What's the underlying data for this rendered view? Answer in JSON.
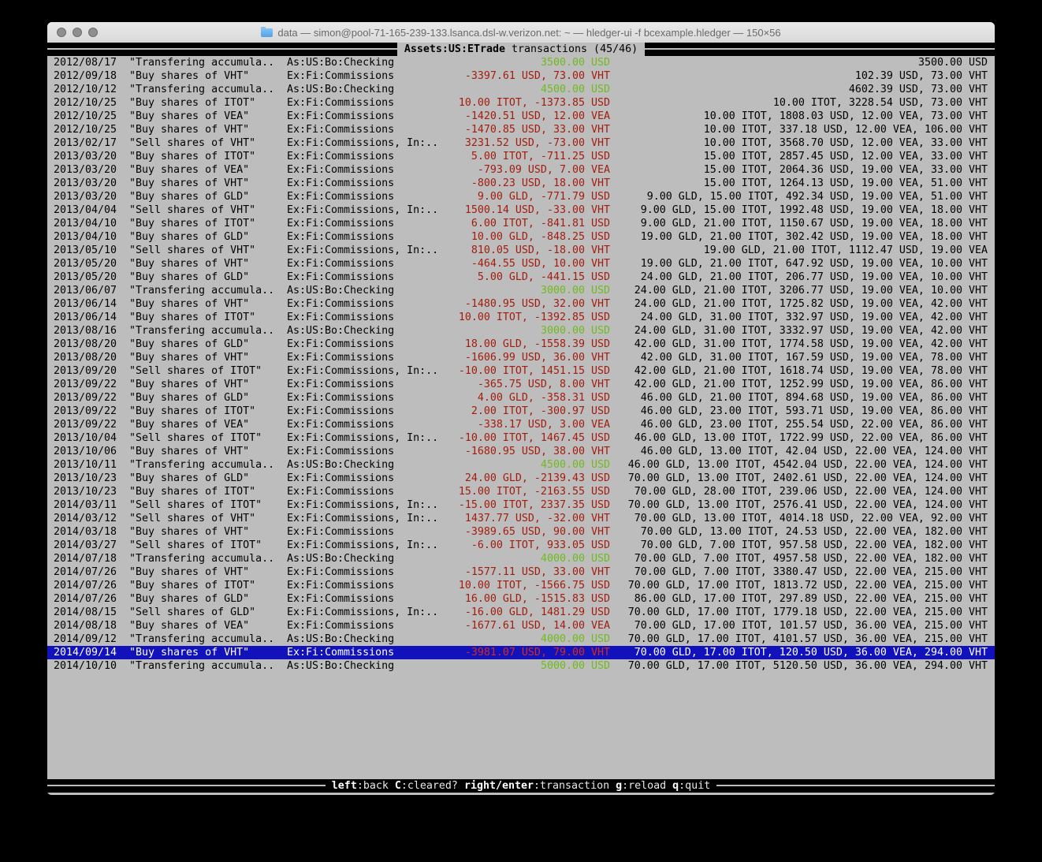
{
  "window": {
    "title": "data — simon@pool-71-165-239-133.lsanca.dsl-w.verizon.net: ~ — hledger-ui -f bcexample.hledger — 150×56"
  },
  "top_bar": {
    "title_bold": "Assets:US:ETrade",
    "title_rest": " transactions (45/46)"
  },
  "bottom_bar": {
    "hints": [
      {
        "key": "left",
        "desc": ":back"
      },
      {
        "key": "C",
        "desc": ":cleared?"
      },
      {
        "key": "right/enter",
        "desc": ":transaction"
      },
      {
        "key": "g",
        "desc": ":reload"
      },
      {
        "key": "q",
        "desc": ":quit"
      }
    ]
  },
  "colors": {
    "terminal-bg": "#bdbdbd",
    "terminal-fg": "#000000",
    "positive-green": "#70bb1c",
    "negative-red": "#a41c0e",
    "selection-bg": "#1212bd",
    "selection-fg": "#ffffff",
    "bar-bg": "#000000",
    "bar-fg": "#e8e8e8"
  },
  "register": {
    "rows": [
      {
        "date": "2012/08/17",
        "description": "\"Transfering accumula..",
        "accounts": "As:US:Bo:Checking",
        "change": "3500.00 USD",
        "change_color": "green",
        "balance": "3500.00 USD"
      },
      {
        "date": "2012/09/18",
        "description": "\"Buy shares of VHT\"",
        "accounts": "Ex:Fi:Commissions",
        "change": "-3397.61 USD, 73.00 VHT",
        "change_color": "red",
        "balance": "102.39 USD, 73.00 VHT"
      },
      {
        "date": "2012/10/12",
        "description": "\"Transfering accumula..",
        "accounts": "As:US:Bo:Checking",
        "change": "4500.00 USD",
        "change_color": "green",
        "balance": "4602.39 USD, 73.00 VHT"
      },
      {
        "date": "2012/10/25",
        "description": "\"Buy shares of ITOT\"",
        "accounts": "Ex:Fi:Commissions",
        "change": "10.00 ITOT, -1373.85 USD",
        "change_color": "red",
        "balance": "10.00 ITOT, 3228.54 USD, 73.00 VHT"
      },
      {
        "date": "2012/10/25",
        "description": "\"Buy shares of VEA\"",
        "accounts": "Ex:Fi:Commissions",
        "change": "-1420.51 USD, 12.00 VEA",
        "change_color": "red",
        "balance": "10.00 ITOT, 1808.03 USD, 12.00 VEA, 73.00 VHT"
      },
      {
        "date": "2012/10/25",
        "description": "\"Buy shares of VHT\"",
        "accounts": "Ex:Fi:Commissions",
        "change": "-1470.85 USD, 33.00 VHT",
        "change_color": "red",
        "balance": "10.00 ITOT, 337.18 USD, 12.00 VEA, 106.00 VHT"
      },
      {
        "date": "2013/02/17",
        "description": "\"Sell shares of VHT\"",
        "accounts": "Ex:Fi:Commissions, In:..",
        "change": "3231.52 USD, -73.00 VHT",
        "change_color": "red",
        "balance": "10.00 ITOT, 3568.70 USD, 12.00 VEA, 33.00 VHT"
      },
      {
        "date": "2013/03/20",
        "description": "\"Buy shares of ITOT\"",
        "accounts": "Ex:Fi:Commissions",
        "change": "5.00 ITOT, -711.25 USD",
        "change_color": "red",
        "balance": "15.00 ITOT, 2857.45 USD, 12.00 VEA, 33.00 VHT"
      },
      {
        "date": "2013/03/20",
        "description": "\"Buy shares of VEA\"",
        "accounts": "Ex:Fi:Commissions",
        "change": "-793.09 USD, 7.00 VEA",
        "change_color": "red",
        "balance": "15.00 ITOT, 2064.36 USD, 19.00 VEA, 33.00 VHT"
      },
      {
        "date": "2013/03/20",
        "description": "\"Buy shares of VHT\"",
        "accounts": "Ex:Fi:Commissions",
        "change": "-800.23 USD, 18.00 VHT",
        "change_color": "red",
        "balance": "15.00 ITOT, 1264.13 USD, 19.00 VEA, 51.00 VHT"
      },
      {
        "date": "2013/03/20",
        "description": "\"Buy shares of GLD\"",
        "accounts": "Ex:Fi:Commissions",
        "change": "9.00 GLD, -771.79 USD",
        "change_color": "red",
        "balance": "9.00 GLD, 15.00 ITOT, 492.34 USD, 19.00 VEA, 51.00 VHT"
      },
      {
        "date": "2013/04/04",
        "description": "\"Sell shares of VHT\"",
        "accounts": "Ex:Fi:Commissions, In:..",
        "change": "1500.14 USD, -33.00 VHT",
        "change_color": "red",
        "balance": "9.00 GLD, 15.00 ITOT, 1992.48 USD, 19.00 VEA, 18.00 VHT"
      },
      {
        "date": "2013/04/10",
        "description": "\"Buy shares of ITOT\"",
        "accounts": "Ex:Fi:Commissions",
        "change": "6.00 ITOT, -841.81 USD",
        "change_color": "red",
        "balance": "9.00 GLD, 21.00 ITOT, 1150.67 USD, 19.00 VEA, 18.00 VHT"
      },
      {
        "date": "2013/04/10",
        "description": "\"Buy shares of GLD\"",
        "accounts": "Ex:Fi:Commissions",
        "change": "10.00 GLD, -848.25 USD",
        "change_color": "red",
        "balance": "19.00 GLD, 21.00 ITOT, 302.42 USD, 19.00 VEA, 18.00 VHT"
      },
      {
        "date": "2013/05/10",
        "description": "\"Sell shares of VHT\"",
        "accounts": "Ex:Fi:Commissions, In:..",
        "change": "810.05 USD, -18.00 VHT",
        "change_color": "red",
        "balance": "19.00 GLD, 21.00 ITOT, 1112.47 USD, 19.00 VEA"
      },
      {
        "date": "2013/05/20",
        "description": "\"Buy shares of VHT\"",
        "accounts": "Ex:Fi:Commissions",
        "change": "-464.55 USD, 10.00 VHT",
        "change_color": "red",
        "balance": "19.00 GLD, 21.00 ITOT, 647.92 USD, 19.00 VEA, 10.00 VHT"
      },
      {
        "date": "2013/05/20",
        "description": "\"Buy shares of GLD\"",
        "accounts": "Ex:Fi:Commissions",
        "change": "5.00 GLD, -441.15 USD",
        "change_color": "red",
        "balance": "24.00 GLD, 21.00 ITOT, 206.77 USD, 19.00 VEA, 10.00 VHT"
      },
      {
        "date": "2013/06/07",
        "description": "\"Transfering accumula..",
        "accounts": "As:US:Bo:Checking",
        "change": "3000.00 USD",
        "change_color": "green",
        "balance": "24.00 GLD, 21.00 ITOT, 3206.77 USD, 19.00 VEA, 10.00 VHT"
      },
      {
        "date": "2013/06/14",
        "description": "\"Buy shares of VHT\"",
        "accounts": "Ex:Fi:Commissions",
        "change": "-1480.95 USD, 32.00 VHT",
        "change_color": "red",
        "balance": "24.00 GLD, 21.00 ITOT, 1725.82 USD, 19.00 VEA, 42.00 VHT"
      },
      {
        "date": "2013/06/14",
        "description": "\"Buy shares of ITOT\"",
        "accounts": "Ex:Fi:Commissions",
        "change": "10.00 ITOT, -1392.85 USD",
        "change_color": "red",
        "balance": "24.00 GLD, 31.00 ITOT, 332.97 USD, 19.00 VEA, 42.00 VHT"
      },
      {
        "date": "2013/08/16",
        "description": "\"Transfering accumula..",
        "accounts": "As:US:Bo:Checking",
        "change": "3000.00 USD",
        "change_color": "green",
        "balance": "24.00 GLD, 31.00 ITOT, 3332.97 USD, 19.00 VEA, 42.00 VHT"
      },
      {
        "date": "2013/08/20",
        "description": "\"Buy shares of GLD\"",
        "accounts": "Ex:Fi:Commissions",
        "change": "18.00 GLD, -1558.39 USD",
        "change_color": "red",
        "balance": "42.00 GLD, 31.00 ITOT, 1774.58 USD, 19.00 VEA, 42.00 VHT"
      },
      {
        "date": "2013/08/20",
        "description": "\"Buy shares of VHT\"",
        "accounts": "Ex:Fi:Commissions",
        "change": "-1606.99 USD, 36.00 VHT",
        "change_color": "red",
        "balance": "42.00 GLD, 31.00 ITOT, 167.59 USD, 19.00 VEA, 78.00 VHT"
      },
      {
        "date": "2013/09/20",
        "description": "\"Sell shares of ITOT\"",
        "accounts": "Ex:Fi:Commissions, In:..",
        "change": "-10.00 ITOT, 1451.15 USD",
        "change_color": "red",
        "balance": "42.00 GLD, 21.00 ITOT, 1618.74 USD, 19.00 VEA, 78.00 VHT"
      },
      {
        "date": "2013/09/22",
        "description": "\"Buy shares of VHT\"",
        "accounts": "Ex:Fi:Commissions",
        "change": "-365.75 USD, 8.00 VHT",
        "change_color": "red",
        "balance": "42.00 GLD, 21.00 ITOT, 1252.99 USD, 19.00 VEA, 86.00 VHT"
      },
      {
        "date": "2013/09/22",
        "description": "\"Buy shares of GLD\"",
        "accounts": "Ex:Fi:Commissions",
        "change": "4.00 GLD, -358.31 USD",
        "change_color": "red",
        "balance": "46.00 GLD, 21.00 ITOT, 894.68 USD, 19.00 VEA, 86.00 VHT"
      },
      {
        "date": "2013/09/22",
        "description": "\"Buy shares of ITOT\"",
        "accounts": "Ex:Fi:Commissions",
        "change": "2.00 ITOT, -300.97 USD",
        "change_color": "red",
        "balance": "46.00 GLD, 23.00 ITOT, 593.71 USD, 19.00 VEA, 86.00 VHT"
      },
      {
        "date": "2013/09/22",
        "description": "\"Buy shares of VEA\"",
        "accounts": "Ex:Fi:Commissions",
        "change": "-338.17 USD, 3.00 VEA",
        "change_color": "red",
        "balance": "46.00 GLD, 23.00 ITOT, 255.54 USD, 22.00 VEA, 86.00 VHT"
      },
      {
        "date": "2013/10/04",
        "description": "\"Sell shares of ITOT\"",
        "accounts": "Ex:Fi:Commissions, In:..",
        "change": "-10.00 ITOT, 1467.45 USD",
        "change_color": "red",
        "balance": "46.00 GLD, 13.00 ITOT, 1722.99 USD, 22.00 VEA, 86.00 VHT"
      },
      {
        "date": "2013/10/06",
        "description": "\"Buy shares of VHT\"",
        "accounts": "Ex:Fi:Commissions",
        "change": "-1680.95 USD, 38.00 VHT",
        "change_color": "red",
        "balance": "46.00 GLD, 13.00 ITOT, 42.04 USD, 22.00 VEA, 124.00 VHT"
      },
      {
        "date": "2013/10/11",
        "description": "\"Transfering accumula..",
        "accounts": "As:US:Bo:Checking",
        "change": "4500.00 USD",
        "change_color": "green",
        "balance": "46.00 GLD, 13.00 ITOT, 4542.04 USD, 22.00 VEA, 124.00 VHT"
      },
      {
        "date": "2013/10/23",
        "description": "\"Buy shares of GLD\"",
        "accounts": "Ex:Fi:Commissions",
        "change": "24.00 GLD, -2139.43 USD",
        "change_color": "red",
        "balance": "70.00 GLD, 13.00 ITOT, 2402.61 USD, 22.00 VEA, 124.00 VHT"
      },
      {
        "date": "2013/10/23",
        "description": "\"Buy shares of ITOT\"",
        "accounts": "Ex:Fi:Commissions",
        "change": "15.00 ITOT, -2163.55 USD",
        "change_color": "red",
        "balance": "70.00 GLD, 28.00 ITOT, 239.06 USD, 22.00 VEA, 124.00 VHT"
      },
      {
        "date": "2014/03/11",
        "description": "\"Sell shares of ITOT\"",
        "accounts": "Ex:Fi:Commissions, In:..",
        "change": "-15.00 ITOT, 2337.35 USD",
        "change_color": "red",
        "balance": "70.00 GLD, 13.00 ITOT, 2576.41 USD, 22.00 VEA, 124.00 VHT"
      },
      {
        "date": "2014/03/12",
        "description": "\"Sell shares of VHT\"",
        "accounts": "Ex:Fi:Commissions, In:..",
        "change": "1437.77 USD, -32.00 VHT",
        "change_color": "red",
        "balance": "70.00 GLD, 13.00 ITOT, 4014.18 USD, 22.00 VEA, 92.00 VHT"
      },
      {
        "date": "2014/03/18",
        "description": "\"Buy shares of VHT\"",
        "accounts": "Ex:Fi:Commissions",
        "change": "-3989.65 USD, 90.00 VHT",
        "change_color": "red",
        "balance": "70.00 GLD, 13.00 ITOT, 24.53 USD, 22.00 VEA, 182.00 VHT"
      },
      {
        "date": "2014/03/27",
        "description": "\"Sell shares of ITOT\"",
        "accounts": "Ex:Fi:Commissions, In:..",
        "change": "-6.00 ITOT, 933.05 USD",
        "change_color": "red",
        "balance": "70.00 GLD, 7.00 ITOT, 957.58 USD, 22.00 VEA, 182.00 VHT"
      },
      {
        "date": "2014/07/18",
        "description": "\"Transfering accumula..",
        "accounts": "As:US:Bo:Checking",
        "change": "4000.00 USD",
        "change_color": "green",
        "balance": "70.00 GLD, 7.00 ITOT, 4957.58 USD, 22.00 VEA, 182.00 VHT"
      },
      {
        "date": "2014/07/26",
        "description": "\"Buy shares of VHT\"",
        "accounts": "Ex:Fi:Commissions",
        "change": "-1577.11 USD, 33.00 VHT",
        "change_color": "red",
        "balance": "70.00 GLD, 7.00 ITOT, 3380.47 USD, 22.00 VEA, 215.00 VHT"
      },
      {
        "date": "2014/07/26",
        "description": "\"Buy shares of ITOT\"",
        "accounts": "Ex:Fi:Commissions",
        "change": "10.00 ITOT, -1566.75 USD",
        "change_color": "red",
        "balance": "70.00 GLD, 17.00 ITOT, 1813.72 USD, 22.00 VEA, 215.00 VHT"
      },
      {
        "date": "2014/07/26",
        "description": "\"Buy shares of GLD\"",
        "accounts": "Ex:Fi:Commissions",
        "change": "16.00 GLD, -1515.83 USD",
        "change_color": "red",
        "balance": "86.00 GLD, 17.00 ITOT, 297.89 USD, 22.00 VEA, 215.00 VHT"
      },
      {
        "date": "2014/08/15",
        "description": "\"Sell shares of GLD\"",
        "accounts": "Ex:Fi:Commissions, In:..",
        "change": "-16.00 GLD, 1481.29 USD",
        "change_color": "red",
        "balance": "70.00 GLD, 17.00 ITOT, 1779.18 USD, 22.00 VEA, 215.00 VHT"
      },
      {
        "date": "2014/08/18",
        "description": "\"Buy shares of VEA\"",
        "accounts": "Ex:Fi:Commissions",
        "change": "-1677.61 USD, 14.00 VEA",
        "change_color": "red",
        "balance": "70.00 GLD, 17.00 ITOT, 101.57 USD, 36.00 VEA, 215.00 VHT"
      },
      {
        "date": "2014/09/12",
        "description": "\"Transfering accumula..",
        "accounts": "As:US:Bo:Checking",
        "change": "4000.00 USD",
        "change_color": "green",
        "balance": "70.00 GLD, 17.00 ITOT, 4101.57 USD, 36.00 VEA, 215.00 VHT"
      },
      {
        "date": "2014/09/14",
        "description": "\"Buy shares of VHT\"",
        "accounts": "Ex:Fi:Commissions",
        "change": "-3981.07 USD, 79.00 VHT",
        "change_color": "red",
        "balance": "70.00 GLD, 17.00 ITOT, 120.50 USD, 36.00 VEA, 294.00 VHT",
        "selected": true
      },
      {
        "date": "2014/10/10",
        "description": "\"Transfering accumula..",
        "accounts": "As:US:Bo:Checking",
        "change": "5000.00 USD",
        "change_color": "green",
        "balance": "70.00 GLD, 17.00 ITOT, 5120.50 USD, 36.00 VEA, 294.00 VHT"
      }
    ]
  }
}
